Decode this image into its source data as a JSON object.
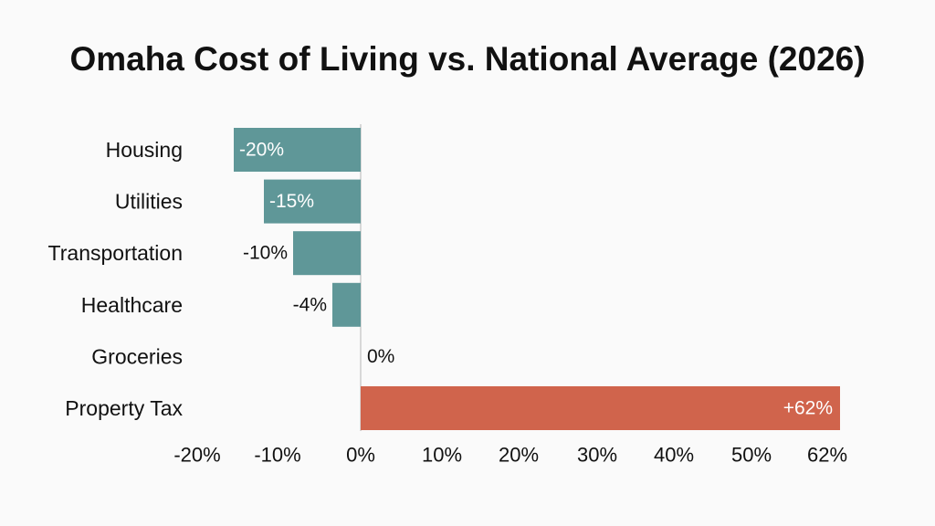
{
  "chart_data": {
    "type": "bar",
    "orientation": "horizontal",
    "title": "Omaha Cost of Living vs. National Average (2026)",
    "xlabel": "",
    "ylabel": "",
    "categories": [
      "Housing",
      "Utilities",
      "Transportation",
      "Healthcare",
      "Groceries",
      "Property Tax"
    ],
    "values": [
      -20,
      -15,
      -10,
      -4,
      0,
      62
    ],
    "data_labels": [
      "-20%",
      "-15%",
      "-10%",
      "-4%",
      "0%",
      "+62%"
    ],
    "x_ticks": [
      {
        "value": -20,
        "label": "-20%"
      },
      {
        "value": -10,
        "label": "-10%"
      },
      {
        "value": 0,
        "label": "0%"
      },
      {
        "value": 10,
        "label": "10%"
      },
      {
        "value": 20,
        "label": "20%"
      },
      {
        "value": 30,
        "label": "30%"
      },
      {
        "value": 40,
        "label": "40%"
      },
      {
        "value": 50,
        "label": "50%"
      },
      {
        "value": 62,
        "label": "62%"
      }
    ],
    "xlim": [
      -20,
      62
    ],
    "grid": false,
    "legend": "none",
    "colors": {
      "negative": "#5f9798",
      "positive": "#d0644c",
      "axis": "#cccccc"
    }
  }
}
